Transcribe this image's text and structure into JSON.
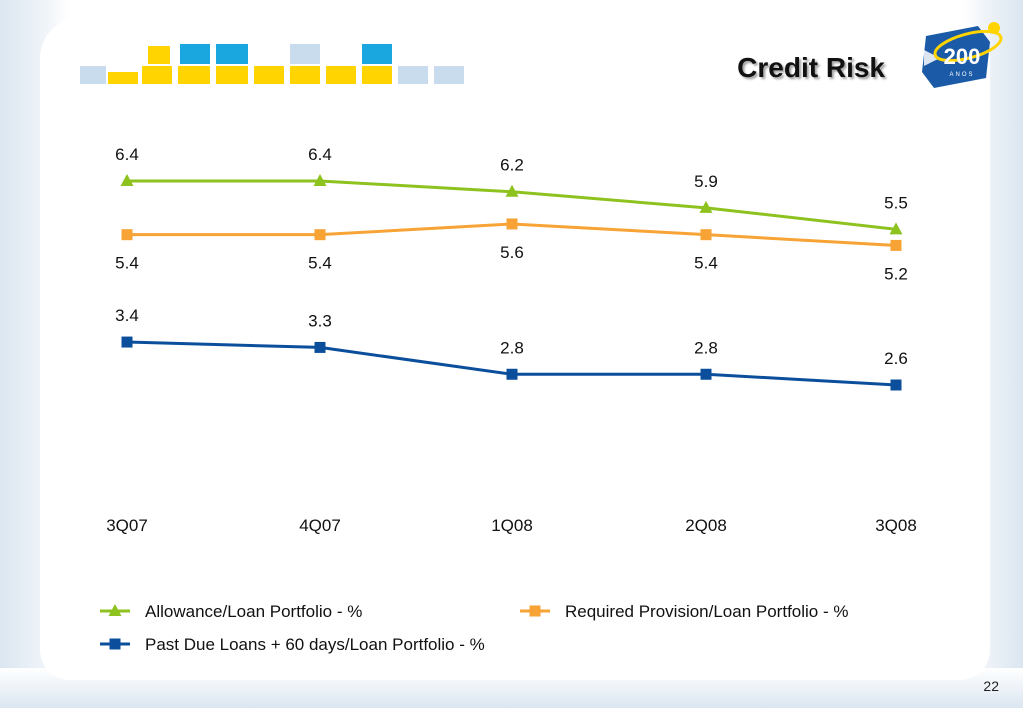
{
  "slide": {
    "title": "Credit Risk",
    "page_number": "22",
    "logo": {
      "text": "200",
      "subtext": "ANOS"
    }
  },
  "colors": {
    "allowance": "#8dc21f",
    "required": "#f7a335",
    "past_due": "#0b4f9c",
    "frame": "#dbe6f1",
    "logo_blue": "#1a5aa6",
    "logo_yellow": "#ffd400",
    "deco_blue": "#c9dcee",
    "deco_cyan": "#1aa6df"
  },
  "chart_data": {
    "type": "line",
    "categories": [
      "3Q07",
      "4Q07",
      "1Q08",
      "2Q08",
      "3Q08"
    ],
    "series": [
      {
        "name": "Allowance/Loan Portfolio - %",
        "values": [
          6.4,
          6.4,
          6.2,
          5.9,
          5.5
        ],
        "marker": "triangle",
        "label_pos": "above"
      },
      {
        "name": "Required Provision/Loan Portfolio - %",
        "values": [
          5.4,
          5.4,
          5.6,
          5.4,
          5.2
        ],
        "marker": "square",
        "label_pos": "below"
      },
      {
        "name": "Past Due Loans + 60 days/Loan Portfolio - %",
        "values": [
          3.4,
          3.3,
          2.8,
          2.8,
          2.6
        ],
        "marker": "square",
        "label_pos": "above"
      }
    ],
    "legend": "bottom",
    "grid": false
  }
}
